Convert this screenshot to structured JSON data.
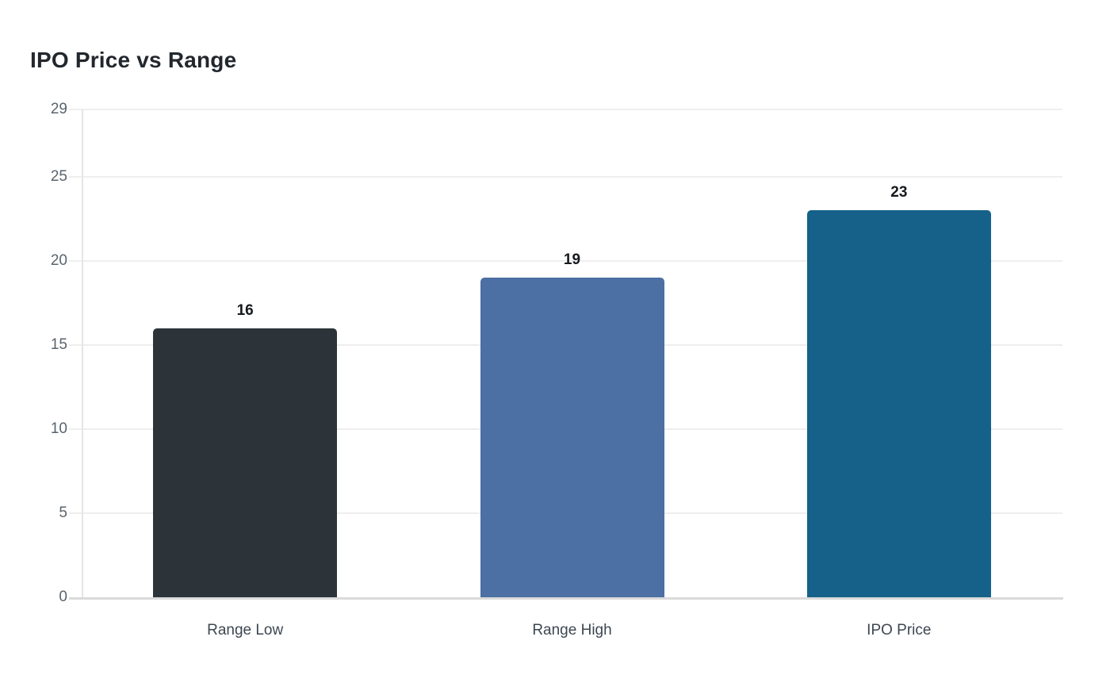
{
  "chart_data": {
    "type": "bar",
    "title": "IPO Price vs Range",
    "categories": [
      "Range Low",
      "Range High",
      "IPO Price"
    ],
    "values": [
      16,
      19,
      23
    ],
    "value_labels": [
      "16",
      "19",
      "23"
    ],
    "bar_colors": [
      "#2c3439",
      "#4c6fa4",
      "#15618a"
    ],
    "xlabel": "",
    "ylabel": "",
    "ylim": [
      0,
      29
    ],
    "yticks": [
      0,
      5,
      10,
      15,
      20,
      25,
      29
    ],
    "grid": "horizontal",
    "legend": "none"
  },
  "colors": {
    "background": "#ffffff",
    "title_text": "#21272d",
    "value_label_text": "#16191d",
    "tick_label_text": "#5a636d",
    "category_label_text": "#3d4751",
    "gridline": "#eeeeee",
    "x_axis_line": "#dadada",
    "y_axis_line": "#e5e5e5"
  }
}
